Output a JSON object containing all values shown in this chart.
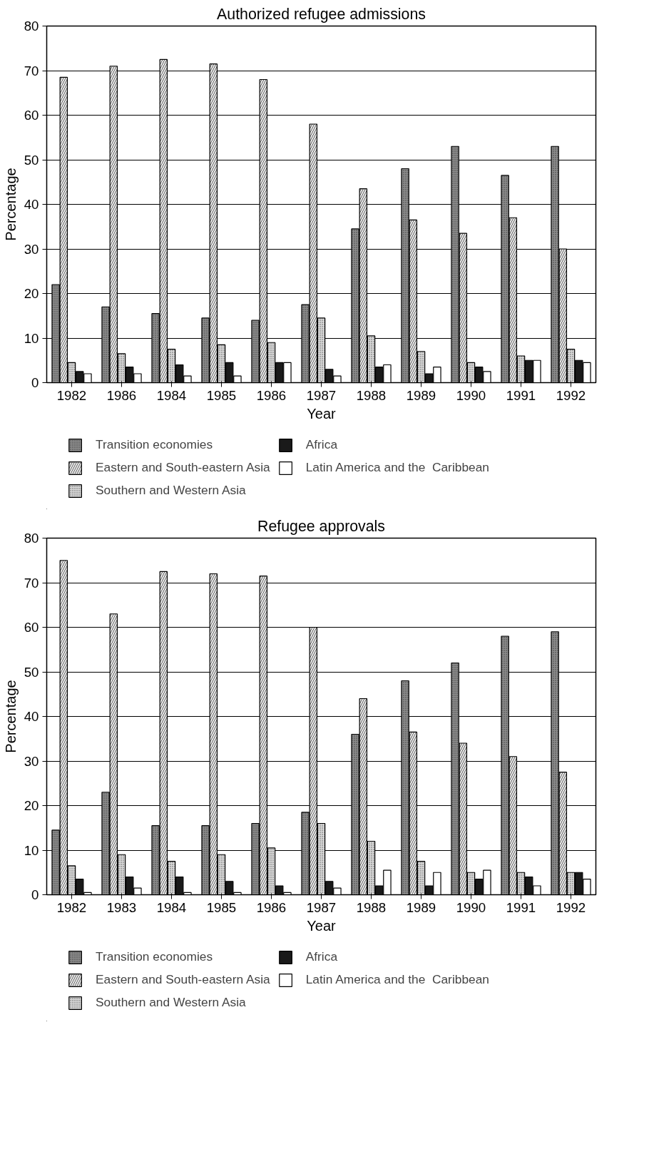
{
  "chart_data": [
    {
      "type": "bar",
      "title": "Authorized refugee admissions",
      "xlabel": "Year",
      "ylabel": "Percentage",
      "categories": [
        "1982",
        "1986",
        "1984",
        "1985",
        "1986",
        "1987",
        "1988",
        "1989",
        "1990",
        "1991",
        "1992"
      ],
      "ylim": [
        0,
        80
      ],
      "yticks": [
        0,
        10,
        20,
        30,
        40,
        50,
        60,
        70,
        80
      ],
      "grid": "y",
      "legend": "bottom",
      "series": [
        {
          "name": "Transition economies",
          "color": "#8c8c8c",
          "values": [
            22,
            17,
            15.5,
            14.5,
            14,
            17.5,
            34.5,
            48,
            53,
            46.5,
            53
          ]
        },
        {
          "name": "Eastern and South-eastern Asia",
          "color": "#ececec",
          "values": [
            68.5,
            71,
            72.5,
            71.5,
            68,
            58,
            43.5,
            36.5,
            33.5,
            37,
            30
          ]
        },
        {
          "name": "Southern and Western Asia",
          "color": "#d9d9d9",
          "values": [
            4.5,
            6.5,
            7.5,
            8.5,
            9,
            14.5,
            10.5,
            7,
            4.5,
            6,
            7.5
          ]
        },
        {
          "name": "Africa",
          "color": "#1a1a1a",
          "values": [
            2.5,
            3.5,
            4,
            4.5,
            4.5,
            3,
            3.5,
            2,
            3.5,
            5,
            5
          ]
        },
        {
          "name": "Latin America and the  Caribbean",
          "color": "#ffffff",
          "values": [
            2,
            2,
            1.5,
            1.5,
            4.5,
            1.5,
            4,
            3.5,
            2.5,
            5,
            4.5
          ]
        }
      ]
    },
    {
      "type": "bar",
      "title": "Refugee approvals",
      "xlabel": "Year",
      "ylabel": "Percentage",
      "categories": [
        "1982",
        "1983",
        "1984",
        "1985",
        "1986",
        "1987",
        "1988",
        "1989",
        "1990",
        "1991",
        "1992"
      ],
      "ylim": [
        0,
        80
      ],
      "yticks": [
        0,
        10,
        20,
        30,
        40,
        50,
        60,
        70,
        80
      ],
      "grid": "y",
      "legend": "bottom",
      "series": [
        {
          "name": "Transition economies",
          "color": "#8c8c8c",
          "values": [
            14.5,
            23,
            15.5,
            15.5,
            16,
            18.5,
            36,
            48,
            52,
            58,
            59
          ]
        },
        {
          "name": "Eastern and South-eastern Asia",
          "color": "#ececec",
          "values": [
            75,
            63,
            72.5,
            72,
            71.5,
            60,
            44,
            36.5,
            34,
            31,
            27.5
          ]
        },
        {
          "name": "Southern and Western Asia",
          "color": "#d9d9d9",
          "values": [
            6.5,
            9,
            7.5,
            9,
            10.5,
            16,
            12,
            7.5,
            5,
            5,
            5
          ]
        },
        {
          "name": "Africa",
          "color": "#1a1a1a",
          "values": [
            3.5,
            4,
            4,
            3,
            2,
            3,
            2,
            2,
            3.5,
            4,
            5
          ]
        },
        {
          "name": "Latin America and the  Caribbean",
          "color": "#ffffff",
          "values": [
            0.5,
            1.5,
            0.5,
            0.5,
            0.5,
            1.5,
            5.5,
            5,
            5.5,
            2,
            3.5
          ]
        }
      ]
    }
  ]
}
